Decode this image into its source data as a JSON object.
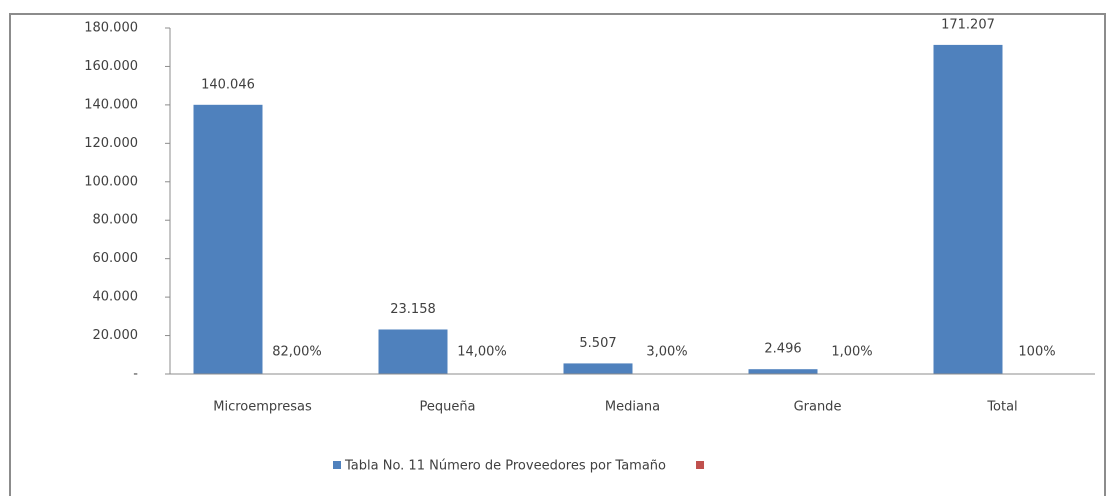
{
  "chart_data": {
    "type": "bar",
    "categories": [
      "Microempresas",
      "Pequeña",
      "Mediana",
      "Grande",
      "Total"
    ],
    "series": [
      {
        "name": "Tabla No. 11 Número de Proveedores por Tamaño",
        "color": "#4f81bd",
        "values": [
          140046,
          23158,
          5507,
          2496,
          171207
        ],
        "value_labels": [
          "140.046",
          "23.158",
          "5.507",
          "2.496",
          "171.207"
        ]
      },
      {
        "color": "#c0504d",
        "values": [
          0.82,
          0.14,
          0.03,
          0.01,
          1
        ],
        "value_labels": [
          "82,00%",
          "14,00%",
          "3,00%",
          "1,00%",
          "100%"
        ]
      }
    ],
    "ylim": [
      0,
      180000
    ],
    "yticks": [
      {
        "value": 0,
        "label": "-"
      },
      {
        "value": 20000,
        "label": "20.000"
      },
      {
        "value": 40000,
        "label": "40.000"
      },
      {
        "value": 60000,
        "label": "60.000"
      },
      {
        "value": 80000,
        "label": "80.000"
      },
      {
        "value": 100000,
        "label": "100.000"
      },
      {
        "value": 120000,
        "label": "120.000"
      },
      {
        "value": 140000,
        "label": "140.000"
      },
      {
        "value": 160000,
        "label": "160.000"
      },
      {
        "value": 180000,
        "label": "180.000"
      }
    ],
    "grid": false,
    "legend": "bottom"
  }
}
